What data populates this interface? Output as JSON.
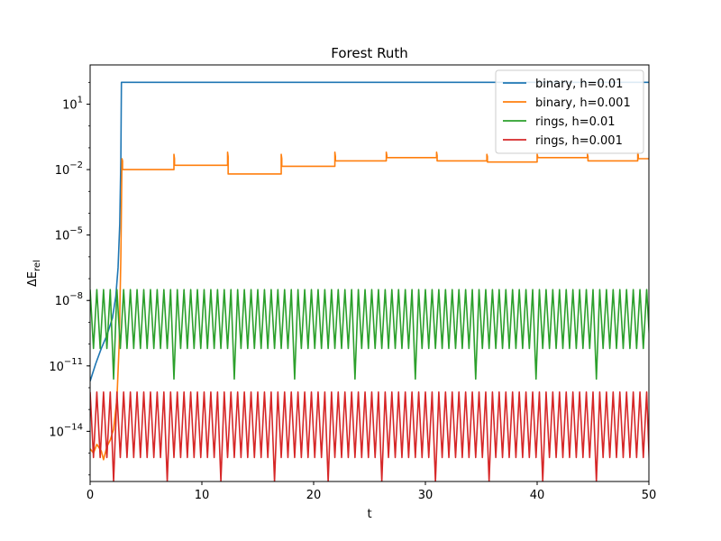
{
  "chart_data": {
    "type": "line",
    "title": "Forest Ruth",
    "xlabel": "t",
    "ylabel_main": "ΔE",
    "ylabel_sub": "rel",
    "xlim": [
      0,
      50
    ],
    "ylog": true,
    "ylim_exp": [
      -16.3,
      2.8
    ],
    "x_ticks": [
      0,
      10,
      20,
      30,
      40,
      50
    ],
    "x_tick_labels": [
      "0",
      "10",
      "20",
      "30",
      "40",
      "50"
    ],
    "y_ticks_exp": [
      1,
      -2,
      -5,
      -8,
      -11,
      -14
    ],
    "y_tick_base": "10",
    "y_tick_exps": [
      "1",
      "−2",
      "−5",
      "−8",
      "−11",
      "−14"
    ],
    "grid": false,
    "legend_position": "top-right",
    "series": [
      {
        "name": "binary, h=0.01",
        "color": "#1f77b4",
        "kind": "binary_blowup",
        "log_points": [
          [
            0.0,
            -11.7
          ],
          [
            0.5,
            -10.9
          ],
          [
            1.0,
            -10.2
          ],
          [
            1.5,
            -9.6
          ],
          [
            2.0,
            -8.8
          ],
          [
            2.3,
            -7.8
          ],
          [
            2.5,
            -6.5
          ],
          [
            2.65,
            -4.5
          ],
          [
            2.75,
            -1.5
          ],
          [
            2.8,
            2.0
          ],
          [
            2.85,
            2.0
          ],
          [
            50.0,
            2.0
          ]
        ]
      },
      {
        "name": "binary, h=0.001",
        "color": "#ff7f0e",
        "kind": "binary_steps",
        "log_points": [
          [
            0.0,
            -14.8
          ],
          [
            0.3,
            -15.0
          ],
          [
            0.6,
            -14.6
          ],
          [
            1.0,
            -14.9
          ],
          [
            1.2,
            -15.3
          ],
          [
            1.5,
            -14.7
          ],
          [
            1.8,
            -14.4
          ],
          [
            2.1,
            -13.9
          ],
          [
            2.4,
            -12.5
          ],
          [
            2.6,
            -10.0
          ],
          [
            2.75,
            -6.0
          ],
          [
            2.85,
            -1.5
          ],
          [
            2.9,
            -1.6
          ],
          [
            2.9,
            -2.0
          ],
          [
            7.5,
            -2.0
          ],
          [
            7.5,
            -1.3
          ],
          [
            7.55,
            -1.5
          ],
          [
            7.55,
            -1.8
          ],
          [
            12.3,
            -1.8
          ],
          [
            12.3,
            -1.2
          ],
          [
            12.35,
            -1.4
          ],
          [
            12.35,
            -2.2
          ],
          [
            17.1,
            -2.2
          ],
          [
            17.1,
            -1.3
          ],
          [
            17.15,
            -1.5
          ],
          [
            17.15,
            -1.85
          ],
          [
            21.9,
            -1.85
          ],
          [
            21.9,
            -1.2
          ],
          [
            21.95,
            -1.4
          ],
          [
            21.95,
            -1.6
          ],
          [
            26.5,
            -1.6
          ],
          [
            26.5,
            -1.2
          ],
          [
            26.55,
            -1.35
          ],
          [
            26.55,
            -1.45
          ],
          [
            31.0,
            -1.45
          ],
          [
            31.0,
            -1.2
          ],
          [
            31.05,
            -1.35
          ],
          [
            31.05,
            -1.6
          ],
          [
            35.5,
            -1.6
          ],
          [
            35.5,
            -1.3
          ],
          [
            35.55,
            -1.4
          ],
          [
            35.55,
            -1.65
          ],
          [
            40.0,
            -1.65
          ],
          [
            40.0,
            -1.3
          ],
          [
            40.05,
            -1.4
          ],
          [
            40.05,
            -1.45
          ],
          [
            44.5,
            -1.45
          ],
          [
            44.5,
            -1.3
          ],
          [
            44.55,
            -1.4
          ],
          [
            44.55,
            -1.6
          ],
          [
            49.0,
            -1.6
          ],
          [
            49.0,
            -1.2
          ],
          [
            49.05,
            -1.35
          ],
          [
            49.05,
            -1.5
          ],
          [
            50.0,
            -1.5
          ]
        ]
      },
      {
        "name": "rings, h=0.01",
        "color": "#2ca02c",
        "kind": "oscillation",
        "period": 0.6,
        "upper_exp": -7.5,
        "lower_exp": -10.2,
        "dip_exp": -11.6,
        "dips_every": 9
      },
      {
        "name": "rings, h=0.001",
        "color": "#d62728",
        "kind": "oscillation",
        "period": 0.6,
        "upper_exp": -12.2,
        "lower_exp": -15.2,
        "dip_exp": -16.3,
        "dips_every": 8
      }
    ]
  }
}
